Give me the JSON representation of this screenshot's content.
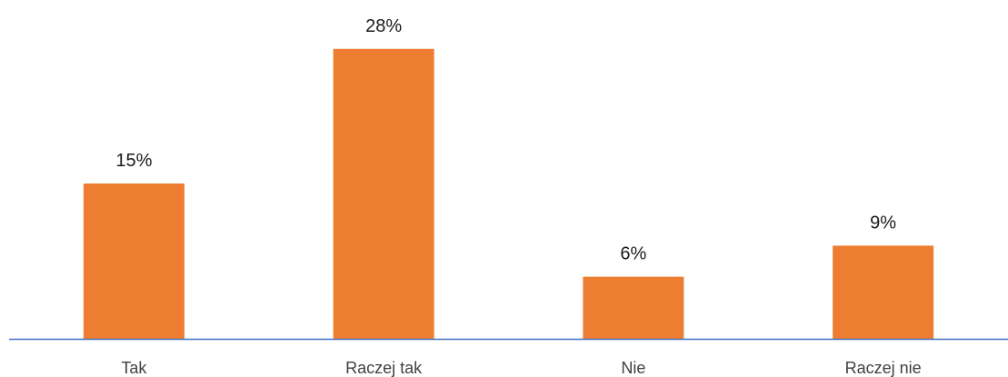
{
  "chart_data": {
    "type": "bar",
    "categories": [
      "Tak",
      "Raczej tak",
      "Nie",
      "Raczej nie"
    ],
    "values": [
      15,
      28,
      6,
      9
    ],
    "data_labels": [
      "15%",
      "28%",
      "6%",
      "9%"
    ],
    "unit": "%",
    "ylim": [
      0,
      30
    ],
    "grid": false,
    "legend": "none",
    "colors": {
      "bar": "#ED7D31",
      "axis": "#4472C4"
    }
  }
}
